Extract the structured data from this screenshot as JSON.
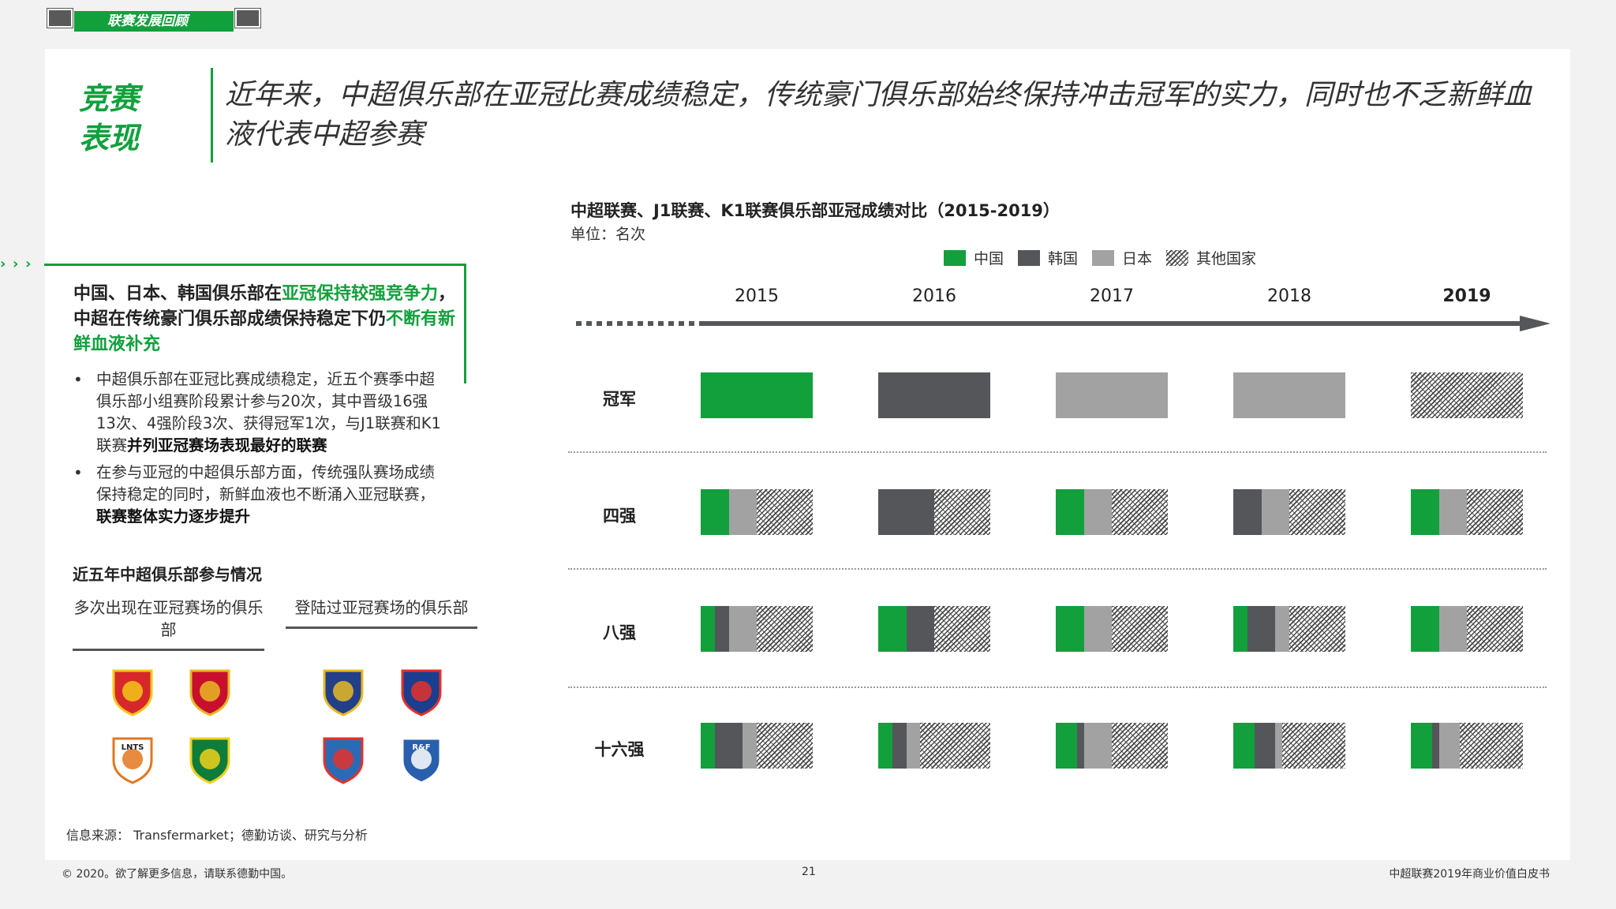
{
  "section_tab": "联赛发展回顾",
  "headline": {
    "key": "竞赛表现",
    "text": "近年来，中超俱乐部在亚冠比赛成绩稳定，传统豪门俱乐部始终保持冲击冠军的实力，同时也不乏新鲜血液代表中超参赛"
  },
  "lead": {
    "part1": "中国、日本、韩国俱乐部在",
    "part2": "亚冠保持较强竞争力",
    "part3": "，中超在传统豪门俱乐部成绩保持稳定下仍",
    "part4": "不断有新鲜血液补充"
  },
  "bullets": [
    {
      "text": "中超俱乐部在亚冠比赛成绩稳定，近五个赛季中超俱乐部小组赛阶段累计参与20次，其中晋级16强13次、4强阶段3次、获得冠军1次，与J1联赛和K1联赛",
      "bold": "并列亚冠赛场表现最好的联赛"
    },
    {
      "text": "在参与亚冠的中超俱乐部方面，传统强队赛场成绩保持稳定的同时，新鲜血液也不断涌入亚冠联赛，",
      "bold": "联赛整体实力逐步提升"
    }
  ],
  "participation": {
    "title": "近五年中超俱乐部参与情况",
    "col_a": "多次出现在亚冠赛场的俱乐部",
    "col_b": "登陆过亚冠赛场的俱乐部",
    "badges": [
      {
        "name": "guangzhou-evergrande-badge",
        "color": "#d6282b",
        "accent": "#f5c518",
        "text": ""
      },
      {
        "name": "shanghai-sipg-badge",
        "color": "#c8102e",
        "accent": "#e8b923",
        "text": ""
      },
      {
        "name": "jiangsu-suning-badge",
        "color": "#233f8a",
        "accent": "#e8b923",
        "text": ""
      },
      {
        "name": "shanghai-shenhua-badge",
        "color": "#1b3e8e",
        "accent": "#e4312b",
        "text": ""
      },
      {
        "name": "liaoning-badge",
        "color": "#ffffff",
        "accent": "#e2771f",
        "text": "LNTS"
      },
      {
        "name": "beijing-guoan-badge",
        "color": "#0e7c3a",
        "accent": "#f1d11b",
        "text": ""
      },
      {
        "name": "tianjin-teda-badge",
        "color": "#2b6bb5",
        "accent": "#e4312b",
        "text": ""
      },
      {
        "name": "shandong-luneng-badge",
        "color": "#2a5fae",
        "accent": "#ffffff",
        "text": "R&F"
      }
    ]
  },
  "source": "信息来源： Transfermarket；德勤访谈、研究与分析",
  "chart_title": "中超联赛、J1联赛、K1联赛俱乐部亚冠成绩对比（2015-2019）",
  "chart_unit": "单位：名次",
  "colors": {
    "cn": "#12a03c",
    "kr": "#54565a",
    "jp": "#a2a2a2",
    "accent": "#12a03c"
  },
  "chart_data": {
    "type": "bar",
    "stacked": true,
    "legend": [
      "中国",
      "韩国",
      "日本",
      "其他国家"
    ],
    "legend_position": "top",
    "years": [
      "2015",
      "2016",
      "2017",
      "2018",
      "2019"
    ],
    "stages": [
      {
        "name": "冠军",
        "slots": 1,
        "values": [
          {
            "cn": 1,
            "kr": 0,
            "jp": 0,
            "ot": 0
          },
          {
            "cn": 0,
            "kr": 1,
            "jp": 0,
            "ot": 0
          },
          {
            "cn": 0,
            "kr": 0,
            "jp": 1,
            "ot": 0
          },
          {
            "cn": 0,
            "kr": 0,
            "jp": 1,
            "ot": 0
          },
          {
            "cn": 0,
            "kr": 0,
            "jp": 0,
            "ot": 1
          }
        ]
      },
      {
        "name": "四强",
        "slots": 4,
        "values": [
          {
            "cn": 1,
            "kr": 0,
            "jp": 1,
            "ot": 2
          },
          {
            "cn": 0,
            "kr": 2,
            "jp": 0,
            "ot": 2
          },
          {
            "cn": 1,
            "kr": 0,
            "jp": 1,
            "ot": 2
          },
          {
            "cn": 0,
            "kr": 1,
            "jp": 1,
            "ot": 2
          },
          {
            "cn": 1,
            "kr": 0,
            "jp": 1,
            "ot": 2
          }
        ]
      },
      {
        "name": "八强",
        "slots": 8,
        "values": [
          {
            "cn": 1,
            "kr": 1,
            "jp": 2,
            "ot": 4
          },
          {
            "cn": 2,
            "kr": 2,
            "jp": 0,
            "ot": 4
          },
          {
            "cn": 2,
            "kr": 0,
            "jp": 2,
            "ot": 4
          },
          {
            "cn": 1,
            "kr": 2,
            "jp": 1,
            "ot": 4
          },
          {
            "cn": 2,
            "kr": 0,
            "jp": 2,
            "ot": 4
          }
        ]
      },
      {
        "name": "十六强",
        "slots": 16,
        "values": [
          {
            "cn": 2,
            "kr": 4,
            "jp": 2,
            "ot": 8
          },
          {
            "cn": 2,
            "kr": 2,
            "jp": 2,
            "ot": 10
          },
          {
            "cn": 3,
            "kr": 1,
            "jp": 4,
            "ot": 8
          },
          {
            "cn": 3,
            "kr": 3,
            "jp": 1,
            "ot": 9
          },
          {
            "cn": 3,
            "kr": 1,
            "jp": 3,
            "ot": 9
          }
        ]
      }
    ]
  },
  "footer": {
    "left": "© 2020。欲了解更多信息，请联系德勤中国。",
    "page": "21",
    "right": "中超联赛2019年商业价值白皮书"
  }
}
